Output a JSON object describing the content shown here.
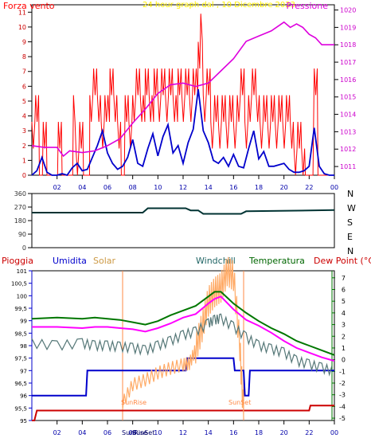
{
  "colors": {
    "frame": "#000000",
    "wind": "#ff0000",
    "gust": "#ff0000",
    "avgwind": "#0000cc",
    "pressure": "#dd00dd",
    "title": "#ffee00",
    "direction": "#003333",
    "rain": "#cc0000",
    "humidity": "#0000cc",
    "solar": "#ffaa66",
    "solar_label": "#cc9944",
    "windchill": "#557777",
    "temperature": "#007700",
    "dewpoint": "#ff00ff",
    "dewpoint_label": "#cc0000",
    "windchill_label": "#226666",
    "temp_label": "#006600",
    "sunmark": "#ff8844"
  },
  "hour_ticks": [
    "02",
    "04",
    "06",
    "08",
    "10",
    "12",
    "14",
    "16",
    "18",
    "20",
    "22",
    "00"
  ],
  "bottom_ticks": [
    "02",
    "04",
    "06",
    "08",
    "10",
    "12",
    "14",
    "16",
    "18",
    "20",
    "22",
    "00"
  ],
  "sun_labels": {
    "sunrise_axis": "SunRise",
    "sunset_axis": "SunSet",
    "sunrise_tag": "SunRise",
    "sunset_tag": "SunSet"
  },
  "chart_data": [
    {
      "type": "line",
      "title": "24 hour graph dal , 10 Dicembre 2023",
      "left_label": "Forza vento",
      "right_label": "Pressione",
      "x_unit": "hour",
      "xlim": [
        0,
        24
      ],
      "y_ticks": [
        "0",
        "1",
        "2",
        "3",
        "4",
        "5",
        "6",
        "7",
        "8",
        "9",
        "10",
        "11"
      ],
      "ylim": [
        0,
        11.5
      ],
      "y2_ticks": [
        "1011",
        "1012",
        "1013",
        "1014",
        "1015",
        "1016",
        "1017",
        "1018",
        "1019",
        "1020"
      ],
      "y2lim": [
        1010.5,
        1020.3
      ],
      "series": [
        {
          "name": "Forza vento",
          "axis": "left",
          "style": "gust_spikes",
          "bursts": [
            [
              0,
              3.6
            ],
            [
              0.3,
              5.4
            ],
            [
              0.6,
              0
            ],
            [
              0.9,
              3.6
            ],
            [
              1.2,
              0
            ],
            [
              2.1,
              3.6
            ],
            [
              2.4,
              0
            ],
            [
              3.3,
              5.4
            ],
            [
              3.5,
              1.8
            ],
            [
              3.8,
              3.6
            ],
            [
              4.1,
              0
            ],
            [
              4.6,
              5.4
            ],
            [
              4.9,
              7.2
            ],
            [
              5.2,
              5.4
            ],
            [
              5.5,
              3.6
            ],
            [
              5.8,
              5.4
            ],
            [
              6.2,
              7.2
            ],
            [
              6.5,
              5.4
            ],
            [
              6.8,
              3.6
            ],
            [
              7.1,
              0
            ],
            [
              7.4,
              5.4
            ],
            [
              7.7,
              3.6
            ],
            [
              8.0,
              5.4
            ],
            [
              8.3,
              7.2
            ],
            [
              8.6,
              5.4
            ],
            [
              9.0,
              7.2
            ],
            [
              9.3,
              5.4
            ],
            [
              9.7,
              7.2
            ],
            [
              10.0,
              5.4
            ],
            [
              10.3,
              7.2
            ],
            [
              10.6,
              5.4
            ],
            [
              10.9,
              7.2
            ],
            [
              11.2,
              5.4
            ],
            [
              11.6,
              7.2
            ],
            [
              11.9,
              5.4
            ],
            [
              12.2,
              7.2
            ],
            [
              12.5,
              5.4
            ],
            [
              12.8,
              7.2
            ],
            [
              13.2,
              9.0
            ],
            [
              13.4,
              10.9
            ],
            [
              13.6,
              5.4
            ],
            [
              13.9,
              7.2
            ],
            [
              14.2,
              3.6
            ],
            [
              14.5,
              5.4
            ],
            [
              14.8,
              3.6
            ],
            [
              15.1,
              5.4
            ],
            [
              15.4,
              3.6
            ],
            [
              15.7,
              5.4
            ],
            [
              16.0,
              3.6
            ],
            [
              16.3,
              5.4
            ],
            [
              16.6,
              7.2
            ],
            [
              16.9,
              3.6
            ],
            [
              17.2,
              5.4
            ],
            [
              17.5,
              7.2
            ],
            [
              17.8,
              5.4
            ],
            [
              18.1,
              3.6
            ],
            [
              18.4,
              5.4
            ],
            [
              18.7,
              3.6
            ],
            [
              19.0,
              5.4
            ],
            [
              19.3,
              3.6
            ],
            [
              19.6,
              5.4
            ],
            [
              19.9,
              3.6
            ],
            [
              20.2,
              5.4
            ],
            [
              20.5,
              3.6
            ],
            [
              20.8,
              1.8
            ],
            [
              21.1,
              3.6
            ],
            [
              21.4,
              1.8
            ],
            [
              21.7,
              0
            ],
            [
              22.4,
              7.2
            ],
            [
              22.7,
              0
            ],
            [
              23.4,
              0
            ]
          ]
        },
        {
          "name": "Vento medio",
          "axis": "left",
          "x": [
            0,
            0.4,
            0.8,
            1.2,
            1.6,
            2,
            2.4,
            2.8,
            3.2,
            3.6,
            4,
            4.4,
            4.8,
            5.2,
            5.6,
            6,
            6.4,
            6.8,
            7.2,
            7.6,
            8,
            8.4,
            8.8,
            9.2,
            9.6,
            10,
            10.4,
            10.8,
            11.2,
            11.6,
            12,
            12.4,
            12.8,
            13.2,
            13.6,
            14,
            14.4,
            14.8,
            15.2,
            15.6,
            16,
            16.4,
            16.8,
            17.2,
            17.6,
            18,
            18.4,
            18.8,
            19.2,
            19.6,
            20,
            20.4,
            20.8,
            21.2,
            21.6,
            22,
            22.4,
            22.8,
            23.2,
            23.6,
            24
          ],
          "y": [
            0,
            0.3,
            1.2,
            0.2,
            0,
            0,
            0.1,
            0,
            0.5,
            0.8,
            0.3,
            0.4,
            1.2,
            2.0,
            3.0,
            1.5,
            0.8,
            0.4,
            0.6,
            1.2,
            2.4,
            0.8,
            0.6,
            1.8,
            2.8,
            1.3,
            2.6,
            3.4,
            1.5,
            2.0,
            0.8,
            2.2,
            3.1,
            5.8,
            3.0,
            2.2,
            1.0,
            0.8,
            1.2,
            0.6,
            1.4,
            0.6,
            0.5,
            1.8,
            3.0,
            1.1,
            1.6,
            0.6,
            0.6,
            0.7,
            0.8,
            0.4,
            0.2,
            0.2,
            0.3,
            0.6,
            3.2,
            0.6,
            0.1,
            0,
            0
          ]
        },
        {
          "name": "Pressione",
          "axis": "right",
          "x": [
            0,
            1,
            2,
            2.5,
            3,
            4,
            5,
            6,
            7,
            8,
            9,
            10,
            11,
            12,
            13,
            14,
            15,
            16,
            17,
            18,
            19,
            20,
            20.5,
            21,
            21.5,
            22,
            22.5,
            23,
            24
          ],
          "y": [
            1012.2,
            1012.1,
            1012.1,
            1011.6,
            1011.9,
            1011.8,
            1011.9,
            1012.2,
            1012.6,
            1013.5,
            1014.3,
            1015.2,
            1015.7,
            1015.8,
            1015.6,
            1015.8,
            1016.5,
            1017.2,
            1018.2,
            1018.5,
            1018.8,
            1019.3,
            1019.0,
            1019.2,
            1019.0,
            1018.6,
            1018.4,
            1018.0,
            1018.0
          ]
        }
      ]
    },
    {
      "type": "line",
      "title": "",
      "x_unit": "hour",
      "xlim": [
        0,
        24
      ],
      "y_ticks": [
        "0",
        "90",
        "180",
        "270",
        "360"
      ],
      "ylim": [
        0,
        360
      ],
      "compass_labels": [
        "N",
        "W",
        "S",
        "E",
        "N"
      ],
      "series": [
        {
          "name": "",
          "x": [
            0,
            8.8,
            9.2,
            12.2,
            12.6,
            13.2,
            13.6,
            16.6,
            17,
            24
          ],
          "y": [
            233,
            233,
            262,
            262,
            248,
            248,
            225,
            225,
            242,
            250
          ]
        }
      ]
    },
    {
      "type": "line",
      "title": "",
      "legend": [
        "Pioggia",
        "Umidita",
        "Solar",
        "Windchill",
        "Temperatura",
        "Dew Point (°C)"
      ],
      "x_unit": "hour",
      "xlim": [
        0,
        24
      ],
      "y_ticks": [
        "95",
        "95,5",
        "96",
        "96,5",
        "97",
        "97,5",
        "98",
        "98,5",
        "99",
        "99,5",
        "100",
        "100,5",
        "101"
      ],
      "ylim": [
        95,
        101
      ],
      "y2_ticks": [
        "-5",
        "-4",
        "-3",
        "-2",
        "-1",
        "0",
        "1",
        "2",
        "3",
        "4",
        "5",
        "6",
        "7"
      ],
      "y2lim": [
        -5.2,
        7.6
      ],
      "series": [
        {
          "name": "Pioggia",
          "axis": "left",
          "x": [
            0,
            0.2,
            0.4,
            22.0,
            22.1,
            24
          ],
          "y": [
            95.0,
            95.0,
            95.4,
            95.4,
            95.6,
            95.6
          ]
        },
        {
          "name": "Umidita",
          "axis": "left",
          "x": [
            0,
            3.5,
            3.6,
            4.3,
            4.4,
            10.0,
            10.1,
            12.2,
            12.3,
            16.0,
            16.1,
            16.8,
            16.9,
            17.2,
            17.3,
            24
          ],
          "y": [
            96.0,
            96.0,
            96.0,
            96.0,
            97.0,
            97.0,
            97.0,
            97.0,
            97.5,
            97.5,
            97.0,
            97.0,
            96.0,
            96.0,
            97.0,
            97.0
          ]
        },
        {
          "name": "Solar",
          "axis": "right",
          "x": [
            7.2,
            8.0,
            9.0,
            10.0,
            11.0,
            12.0,
            12.5,
            13.0,
            13.5,
            14.0,
            14.5,
            15.0,
            15.5,
            16.0,
            16.5,
            16.8
          ],
          "y": [
            -3.8,
            -2.2,
            -1.8,
            -1.2,
            -0.8,
            -0.5,
            -0.4,
            0.8,
            2.6,
            4.8,
            5.6,
            6.0,
            7.4,
            7.0,
            1.0,
            -5.0
          ]
        },
        {
          "name": "Windchill",
          "axis": "right",
          "x": [
            0,
            2,
            4,
            5,
            6,
            7,
            8,
            9,
            10,
            11,
            12,
            13,
            14,
            14.5,
            15,
            16,
            17,
            18,
            19,
            20,
            21,
            22,
            23,
            24
          ],
          "y": [
            1.8,
            1.6,
            1.8,
            1.6,
            1.6,
            1.5,
            1.4,
            1.2,
            1.6,
            2.0,
            2.5,
            2.8,
            3.5,
            3.8,
            3.9,
            3.2,
            2.3,
            1.6,
            1.3,
            1.0,
            0.3,
            0.0,
            -0.3,
            -0.6
          ]
        },
        {
          "name": "Temperatura",
          "axis": "right",
          "x": [
            0,
            2,
            4,
            5,
            6,
            7,
            8,
            9,
            10,
            11,
            12,
            13,
            14,
            14.5,
            15,
            16,
            17,
            18,
            19,
            20,
            21,
            22,
            23,
            24
          ],
          "y": [
            3.5,
            3.6,
            3.5,
            3.6,
            3.5,
            3.4,
            3.2,
            3.0,
            3.3,
            3.8,
            4.2,
            4.6,
            5.4,
            5.8,
            5.8,
            4.8,
            4.0,
            3.3,
            2.7,
            2.2,
            1.6,
            1.2,
            0.8,
            0.4
          ]
        },
        {
          "name": "Dew Point (°C)",
          "axis": "right",
          "x": [
            0,
            2,
            4,
            5,
            6,
            7,
            8,
            9,
            10,
            11,
            12,
            13,
            14,
            14.5,
            15,
            16,
            17,
            18,
            19,
            20,
            21,
            22,
            23,
            24
          ],
          "y": [
            2.8,
            2.8,
            2.7,
            2.8,
            2.8,
            2.7,
            2.6,
            2.4,
            2.7,
            3.1,
            3.6,
            3.9,
            4.8,
            5.2,
            5.4,
            4.3,
            3.4,
            2.9,
            2.3,
            1.6,
            1.0,
            0.6,
            0.2,
            -0.1
          ]
        }
      ]
    }
  ]
}
